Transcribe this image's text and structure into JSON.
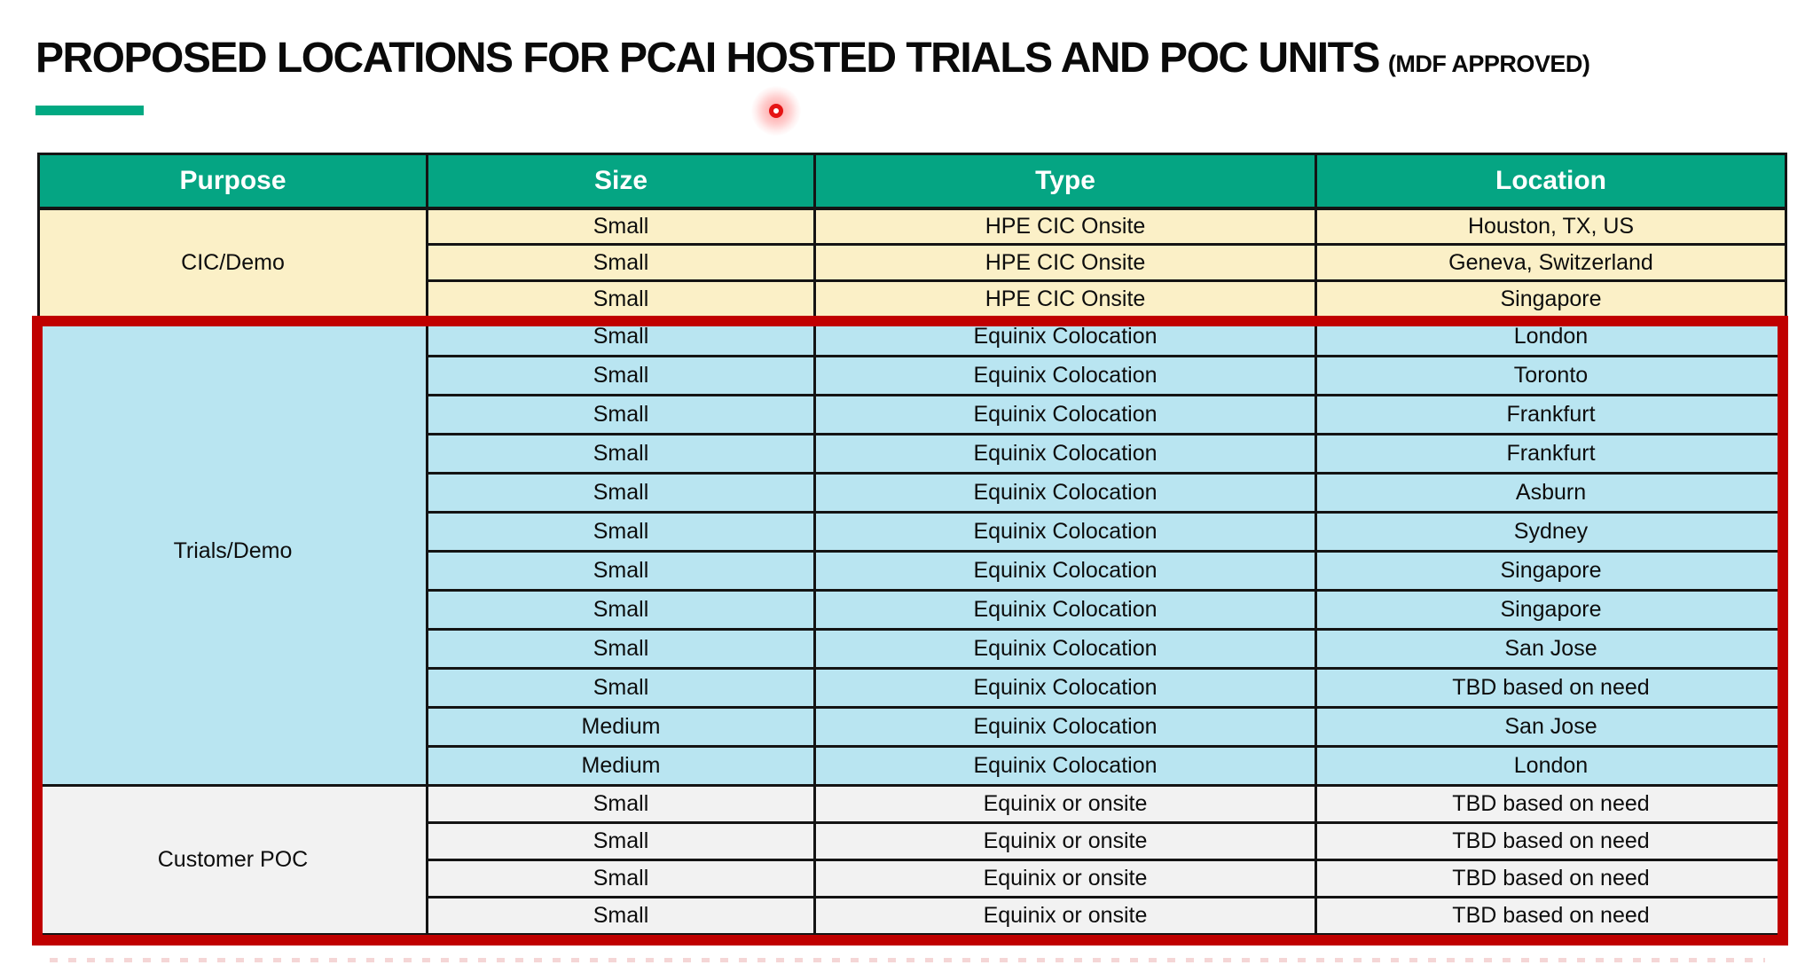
{
  "title": {
    "main": "PROPOSED LOCATIONS FOR PCAI HOSTED TRIALS AND POC UNITS",
    "suffix": "(MDF APPROVED)"
  },
  "table": {
    "headers": [
      "Purpose",
      "Size",
      "Type",
      "Location"
    ],
    "sections": [
      {
        "purpose": "CIC/Demo",
        "bg": "#FBF0C7",
        "rows": [
          [
            "Small",
            "HPE CIC Onsite",
            "Houston, TX, US"
          ],
          [
            "Small",
            "HPE CIC Onsite",
            "Geneva, Switzerland"
          ],
          [
            "Small",
            "HPE CIC Onsite",
            "Singapore"
          ]
        ]
      },
      {
        "purpose": "Trials/Demo",
        "bg": "#B9E5F1",
        "rows": [
          [
            "Small",
            "Equinix Colocation",
            "London"
          ],
          [
            "Small",
            "Equinix Colocation",
            "Toronto"
          ],
          [
            "Small",
            "Equinix Colocation",
            "Frankfurt"
          ],
          [
            "Small",
            "Equinix Colocation",
            "Frankfurt"
          ],
          [
            "Small",
            "Equinix Colocation",
            "Asburn"
          ],
          [
            "Small",
            "Equinix Colocation",
            "Sydney"
          ],
          [
            "Small",
            "Equinix Colocation",
            "Singapore"
          ],
          [
            "Small",
            "Equinix Colocation",
            "Singapore"
          ],
          [
            "Small",
            "Equinix Colocation",
            "San Jose"
          ],
          [
            "Small",
            "Equinix Colocation",
            "TBD based on need"
          ],
          [
            "Medium",
            "Equinix Colocation",
            "San Jose"
          ],
          [
            "Medium",
            "Equinix Colocation",
            "London"
          ]
        ]
      },
      {
        "purpose": "Customer POC",
        "bg": "#F2F2F2",
        "rows": [
          [
            "Small",
            "Equinix or onsite",
            "TBD based on need"
          ],
          [
            "Small",
            "Equinix or onsite",
            "TBD based on need"
          ],
          [
            "Small",
            "Equinix or onsite",
            "TBD based on need"
          ],
          [
            "Small",
            "Equinix or onsite",
            "TBD based on need"
          ]
        ]
      }
    ]
  },
  "colors": {
    "accent_green": "#01A982",
    "header_bg": "#05A583",
    "header_text": "#FFFFFF",
    "grid_line": "#141414",
    "highlight_border": "#C00000",
    "cursor_dot": "#E51414"
  }
}
